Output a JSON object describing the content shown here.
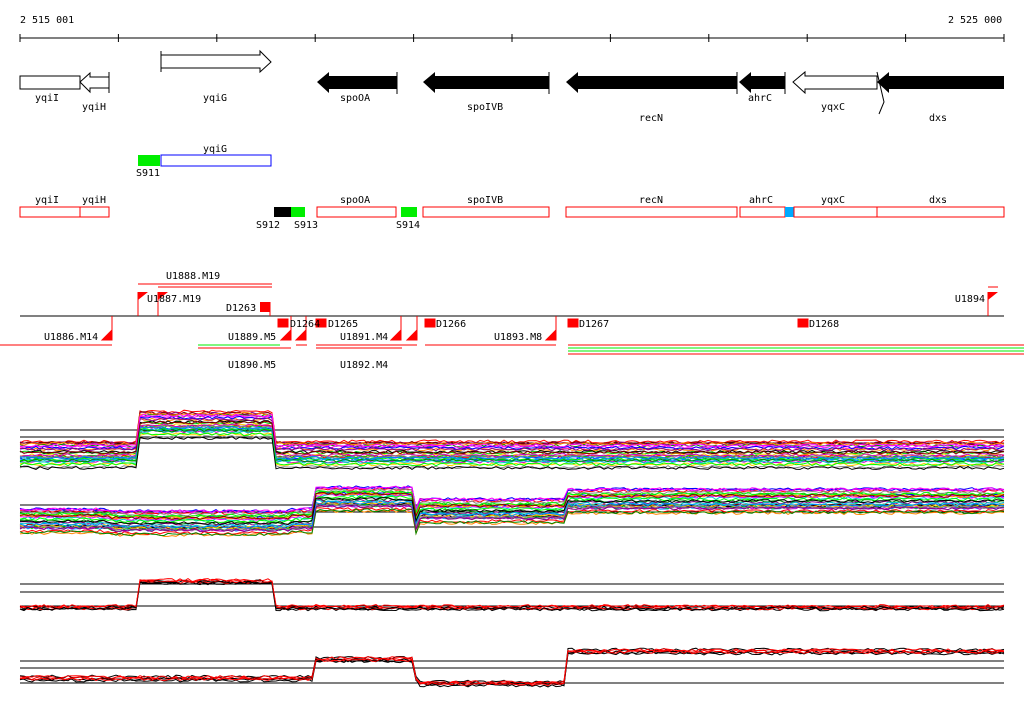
{
  "ruler": {
    "start_label": "2 515 001",
    "end_label": "2 525 000"
  },
  "genes": [
    {
      "name": "yqiI",
      "strand": "-",
      "fill": "white"
    },
    {
      "name": "yqiH",
      "strand": "-",
      "fill": "white"
    },
    {
      "name": "yqiG",
      "strand": "+",
      "fill": "white"
    },
    {
      "name": "spoOA",
      "strand": "-",
      "fill": "black"
    },
    {
      "name": "spoIVB",
      "strand": "-",
      "fill": "black"
    },
    {
      "name": "recN",
      "strand": "-",
      "fill": "black"
    },
    {
      "name": "ahrC",
      "strand": "-",
      "fill": "black"
    },
    {
      "name": "yqxC",
      "strand": "-",
      "fill": "white"
    },
    {
      "name": "dxs",
      "strand": "-",
      "fill": "black"
    }
  ],
  "plus_track": {
    "segment": "S911",
    "gene": "yqiG"
  },
  "minus_track": {
    "genes": [
      "yqiI",
      "yqiH",
      "spoOA",
      "spoIVB",
      "recN",
      "ahrC",
      "yqxC",
      "dxs"
    ],
    "segments": [
      "S912",
      "S913",
      "S914"
    ]
  },
  "features": {
    "above": [
      "U1887.M19",
      "U1888.M19",
      "D1263",
      "U1894"
    ],
    "below": [
      "U1886.M14",
      "U1889.M5",
      "U1890.M5",
      "D1264",
      "D1265",
      "U1891.M4",
      "U1892.M4",
      "D1266",
      "U1893.M8",
      "D1267",
      "D1268"
    ]
  },
  "colors": {
    "red": "#ff0000",
    "green": "#00ee00",
    "blue": "#0000ff",
    "cyan": "#00aaff"
  }
}
